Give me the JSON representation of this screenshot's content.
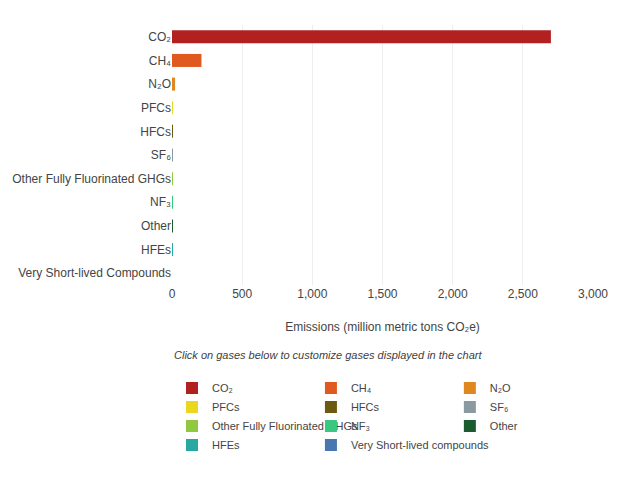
{
  "chart_data": {
    "type": "bar",
    "orientation": "horizontal",
    "categories": [
      "CO₂",
      "CH₄",
      "N₂O",
      "PFCs",
      "HFCs",
      "SF₆",
      "Other Fully Fluorinated GHGs",
      "NF₃",
      "Other",
      "HFEs",
      "Very Short-lived Compounds"
    ],
    "series": [
      {
        "name": "CO₂",
        "color": "#b22020",
        "values": [
          2700,
          null,
          null,
          null,
          null,
          null,
          null,
          null,
          null,
          null,
          null
        ]
      },
      {
        "name": "CH₄",
        "color": "#e05a20",
        "values": [
          null,
          210,
          null,
          null,
          null,
          null,
          null,
          null,
          null,
          null,
          null
        ]
      },
      {
        "name": "N₂O",
        "color": "#e08820",
        "values": [
          null,
          null,
          22,
          null,
          null,
          null,
          null,
          null,
          null,
          null,
          null
        ]
      },
      {
        "name": "PFCs",
        "color": "#e8d820",
        "values": [
          null,
          null,
          null,
          0.3,
          null,
          null,
          null,
          null,
          null,
          null,
          null
        ]
      },
      {
        "name": "HFCs",
        "color": "#6b5a10",
        "values": [
          null,
          null,
          null,
          null,
          0.5,
          null,
          null,
          null,
          null,
          null,
          null
        ]
      },
      {
        "name": "SF₆",
        "color": "#8a9aa0",
        "values": [
          null,
          null,
          null,
          null,
          null,
          0.8,
          null,
          null,
          null,
          null,
          null
        ]
      },
      {
        "name": "Other Fully Fluorinated GHGs",
        "color": "#90c840",
        "values": [
          null,
          null,
          null,
          null,
          null,
          null,
          0.2,
          null,
          null,
          null,
          null
        ]
      },
      {
        "name": "NF₃",
        "color": "#38c880",
        "values": [
          null,
          null,
          null,
          null,
          null,
          null,
          null,
          0.1,
          null,
          null,
          null
        ]
      },
      {
        "name": "Other",
        "color": "#1a5c30",
        "values": [
          null,
          null,
          null,
          null,
          null,
          null,
          null,
          null,
          0.15,
          null,
          null
        ]
      },
      {
        "name": "HFEs",
        "color": "#28a8a0",
        "values": [
          null,
          null,
          null,
          null,
          null,
          null,
          null,
          null,
          null,
          0.05,
          null
        ]
      },
      {
        "name": "Very Short-lived compounds",
        "color": "#4878b0",
        "values": [
          null,
          null,
          null,
          null,
          null,
          null,
          null,
          null,
          null,
          null,
          0.02
        ]
      }
    ],
    "xlabel": "Emissions (million metric tons CO₂e)",
    "xlim": [
      0,
      3000
    ],
    "xticks": [
      0,
      500,
      {
        "value": 1000,
        "label": "1,000"
      },
      {
        "value": 1500,
        "label": "1,500"
      },
      {
        "value": 2000,
        "label": "2,000"
      },
      {
        "value": 2500,
        "label": "2,500"
      },
      {
        "value": 3000,
        "label": "3,000"
      }
    ],
    "grid": true,
    "legend": "bottom",
    "annotations": [
      "Click on gases below to customize gases displayed in the chart"
    ]
  }
}
